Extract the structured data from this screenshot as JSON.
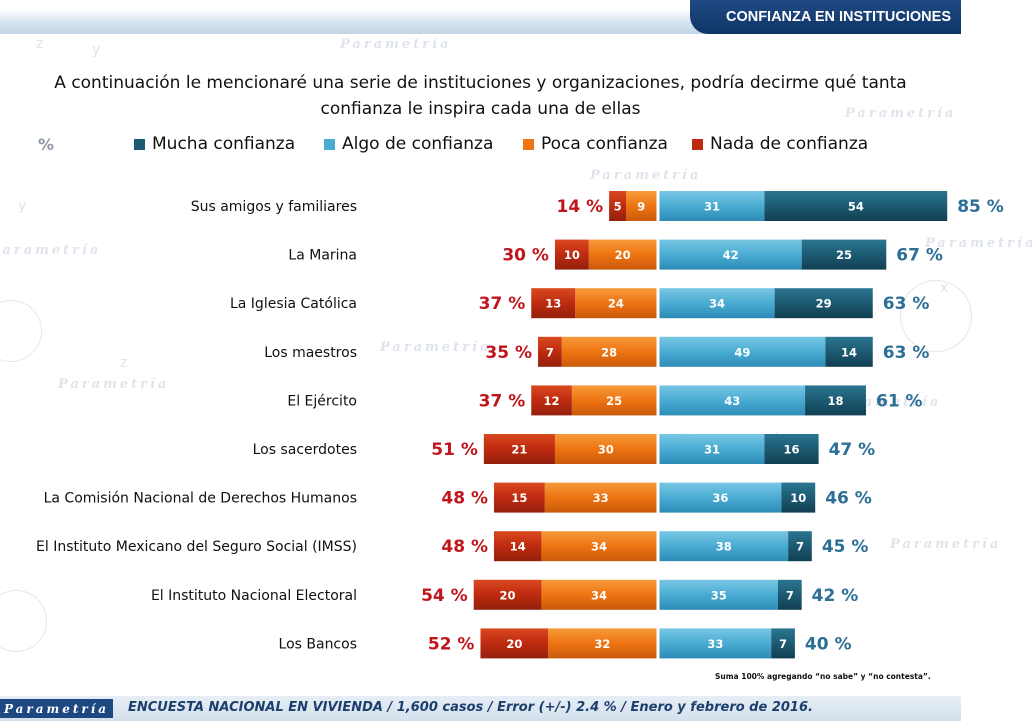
{
  "header": {
    "title": "CONFIANZA EN INSTITUCIONES"
  },
  "question": {
    "line1": "A continuación le mencionaré una serie de instituciones y organizaciones, podría decirme qué tanta",
    "line2": "confianza le inspira cada una de ellas"
  },
  "percent_symbol": "%",
  "watermark": {
    "text": "Parametría",
    "glyphs": [
      "x",
      "y",
      "z",
      "x",
      "y",
      "z"
    ]
  },
  "colors": {
    "mucha": "#1d5a72",
    "algo": "#4aacd2",
    "poca": "#ee7412",
    "nada": "#be2a10",
    "negative_total": "#c0151d",
    "positive_total": "#2c6f95"
  },
  "chart_data": {
    "type": "bar",
    "orientation": "horizontal-diverging-stacked",
    "legend": [
      {
        "key": "mucha",
        "label": "Mucha confianza"
      },
      {
        "key": "algo",
        "label": "Algo de confianza"
      },
      {
        "key": "poca",
        "label": "Poca confianza"
      },
      {
        "key": "nada",
        "label": "Nada de confianza"
      }
    ],
    "categories": [
      "Sus amigos y familiares",
      "La Marina",
      "La Iglesia Católica",
      "Los maestros",
      "El Ejército",
      "Los sacerdotes",
      "La Comisión Nacional de Derechos Humanos",
      "El Instituto Mexicano del Seguro Social (IMSS)",
      "El Instituto Nacional Electoral",
      "Los Bancos"
    ],
    "series": [
      {
        "name": "Mucha confianza",
        "key": "mucha",
        "values": [
          54,
          25,
          29,
          14,
          18,
          16,
          10,
          7,
          7,
          7
        ]
      },
      {
        "name": "Algo de confianza",
        "key": "algo",
        "values": [
          31,
          42,
          34,
          49,
          43,
          31,
          36,
          38,
          35,
          33
        ]
      },
      {
        "name": "Poca confianza",
        "key": "poca",
        "values": [
          9,
          20,
          24,
          28,
          25,
          30,
          33,
          34,
          34,
          32
        ]
      },
      {
        "name": "Nada de confianza",
        "key": "nada",
        "values": [
          5,
          10,
          13,
          7,
          12,
          21,
          15,
          14,
          20,
          20
        ]
      }
    ],
    "positive_totals": [
      "85 %",
      "67 %",
      "63 %",
      "63 %",
      "61 %",
      "47 %",
      "46 %",
      "45 %",
      "42 %",
      "40 %"
    ],
    "negative_totals": [
      "14 %",
      "30 %",
      "37 %",
      "35 %",
      "37 %",
      "51 %",
      "48 %",
      "48 %",
      "54 %",
      "52 %"
    ],
    "unit": "%"
  },
  "note": "Suma 100% agregando “no sabe” y “no contesta”.",
  "footer": {
    "logo": "Parametría",
    "text": "ENCUESTA NACIONAL EN VIVIENDA / 1,600 casos / Error (+/-) 2.4 % / Enero y febrero de 2016."
  }
}
